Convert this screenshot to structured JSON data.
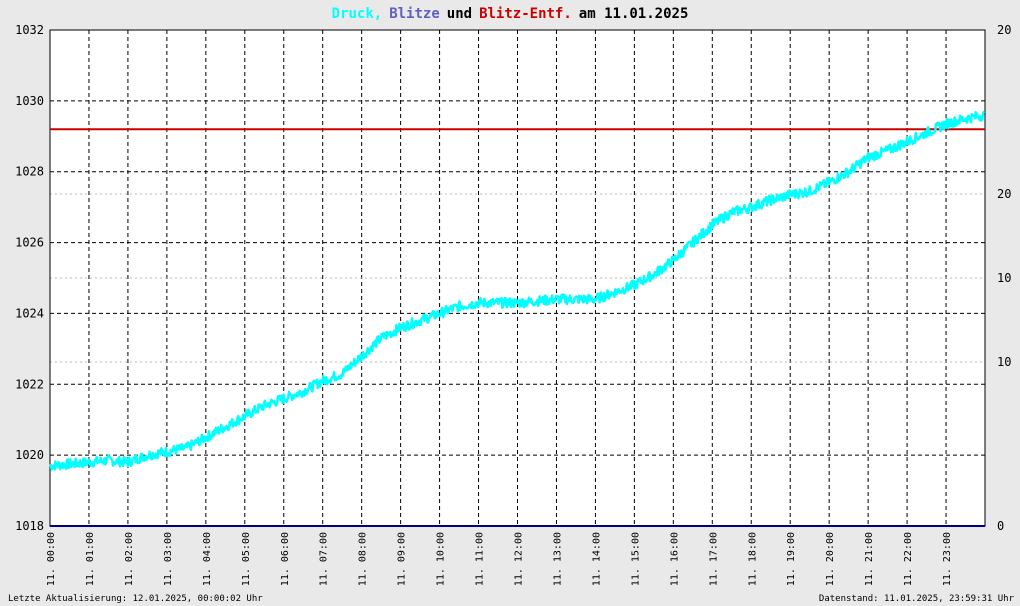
{
  "title": {
    "part1": "Druck,",
    "part2": "Blitze",
    "part3": "und",
    "part4": "Blitz-Entf.",
    "part5": "am 11.01.2025"
  },
  "colors": {
    "druck": "#00ffff",
    "blitze": "#6060c0",
    "blitz_entf": "#cc0000",
    "text": "#000000",
    "plot_bg": "#ffffff",
    "page_bg": "#e9e9e9",
    "baseline": "#000080",
    "right_red_ticks": "#cc0000"
  },
  "left_axis_labels": [
    "1032",
    "1030",
    "1028",
    "1026",
    "1024",
    "1022",
    "1020",
    "1018"
  ],
  "right_axis_labels": {
    "black": [
      "20",
      "10",
      "0"
    ],
    "red": [
      "20",
      "10"
    ]
  },
  "x_tick_labels": [
    "11. 00:00",
    "11. 01:00",
    "11. 02:00",
    "11. 03:00",
    "11. 04:00",
    "11. 05:00",
    "11. 06:00",
    "11. 07:00",
    "11. 08:00",
    "11. 09:00",
    "11. 10:00",
    "11. 11:00",
    "11. 12:00",
    "11. 13:00",
    "11. 14:00",
    "11. 15:00",
    "11. 16:00",
    "11. 17:00",
    "11. 18:00",
    "11. 19:00",
    "11. 20:00",
    "11. 21:00",
    "11. 22:00",
    "11. 23:00"
  ],
  "footer": {
    "left": "Letzte Aktualisierung: 12.01.2025, 00:00:02 Uhr",
    "right": "Datenstand: 11.01.2025, 23:59:31 Uhr"
  },
  "chart_data": {
    "type": "line",
    "title": "Druck, Blitze und Blitz-Entf. am 11.01.2025",
    "x_unit": "hours since 00:00",
    "xlim": [
      0,
      24
    ],
    "ylim_left": [
      1018,
      1032
    ],
    "grid": true,
    "series": [
      {
        "name": "Druck",
        "x": [
          0,
          0.5,
          1,
          1.5,
          2,
          2.5,
          3,
          3.5,
          4,
          4.5,
          5,
          5.5,
          6,
          6.5,
          7,
          7.5,
          8,
          8.5,
          9,
          9.5,
          10,
          10.5,
          11,
          11.5,
          12,
          12.5,
          13,
          13.5,
          14,
          14.5,
          15,
          15.5,
          16,
          16.5,
          17,
          17.5,
          18,
          18.5,
          19,
          19.5,
          20,
          20.5,
          21,
          21.5,
          22,
          22.5,
          23,
          23.5,
          23.98
        ],
        "y": [
          1019.7,
          1019.75,
          1019.8,
          1019.85,
          1019.8,
          1020.0,
          1020.1,
          1020.2,
          1020.5,
          1020.8,
          1021.1,
          1021.4,
          1021.6,
          1021.8,
          1022.1,
          1022.3,
          1022.8,
          1023.3,
          1023.6,
          1023.8,
          1024.0,
          1024.2,
          1024.3,
          1024.3,
          1024.3,
          1024.35,
          1024.4,
          1024.4,
          1024.4,
          1024.6,
          1024.8,
          1025.1,
          1025.5,
          1026.0,
          1026.5,
          1026.85,
          1027.0,
          1027.2,
          1027.35,
          1027.45,
          1027.7,
          1028.0,
          1028.4,
          1028.6,
          1028.85,
          1029.1,
          1029.35,
          1029.5,
          1029.6
        ]
      },
      {
        "name": "Blitz-Entf.",
        "x": [
          0,
          24
        ],
        "y": [
          1029.2,
          1029.2
        ]
      },
      {
        "name": "Blitze",
        "x": [
          0,
          24
        ],
        "y": [
          1018,
          1018
        ]
      }
    ]
  }
}
